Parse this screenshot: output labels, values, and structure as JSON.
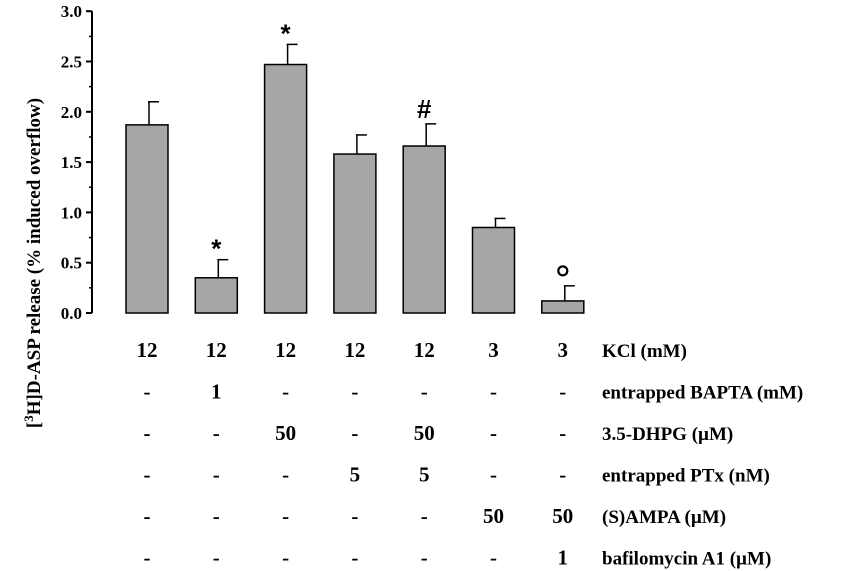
{
  "chart_data": {
    "type": "bar",
    "ylabel_prefix": "[",
    "ylabel_sup": "3",
    "ylabel_main": "H]D-ASP release (% induced overflow)",
    "ylim": [
      0,
      3.0
    ],
    "yticks": [
      "0.0",
      "0.5",
      "1.0",
      "1.5",
      "2.0",
      "2.5",
      "3.0"
    ],
    "bar_color": "#a6a6a6",
    "values": [
      1.87,
      0.35,
      2.47,
      1.58,
      1.66,
      0.85,
      0.12
    ],
    "errors": [
      0.23,
      0.18,
      0.2,
      0.19,
      0.22,
      0.09,
      0.15
    ],
    "significance": [
      "",
      "*",
      "*",
      "",
      "#",
      "",
      "o"
    ],
    "conditions": [
      {
        "label": "KCl (mM)",
        "values": [
          "12",
          "12",
          "12",
          "12",
          "12",
          "3",
          "3"
        ]
      },
      {
        "label": "entrapped BAPTA (mM)",
        "values": [
          "-",
          "1",
          "-",
          "-",
          "-",
          "-",
          "-"
        ]
      },
      {
        "label": "3.5-DHPG (µM)",
        "values": [
          "-",
          "-",
          "50",
          "-",
          "50",
          "-",
          "-"
        ]
      },
      {
        "label": "entrapped PTx (nM)",
        "values": [
          "-",
          "-",
          "-",
          "5",
          "5",
          "-",
          "-"
        ]
      },
      {
        "label": "(S)AMPA (µM)",
        "values": [
          "-",
          "-",
          "-",
          "-",
          "-",
          "50",
          "50"
        ]
      },
      {
        "label": "bafilomycin A1 (µM)",
        "values": [
          "-",
          "-",
          "-",
          "-",
          "-",
          "-",
          "1"
        ]
      }
    ]
  }
}
